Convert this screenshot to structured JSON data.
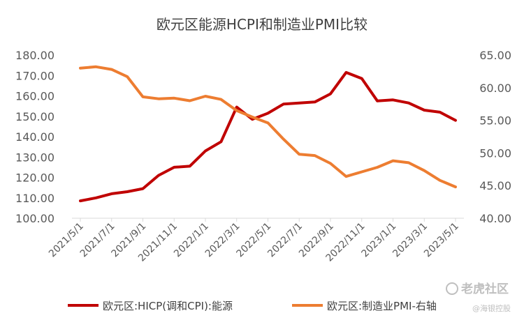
{
  "chart_data": {
    "type": "line",
    "title": "欧元区能源HCPI和制造业PMI比较",
    "x": [
      "2021/5/1",
      "2021/6/1",
      "2021/7/1",
      "2021/8/1",
      "2021/9/1",
      "2021/10/1",
      "2021/11/1",
      "2021/12/1",
      "2022/1/1",
      "2022/2/1",
      "2022/3/1",
      "2022/4/1",
      "2022/5/1",
      "2022/6/1",
      "2022/7/1",
      "2022/8/1",
      "2022/9/1",
      "2022/10/1",
      "2022/11/1",
      "2022/12/1",
      "2023/1/1",
      "2023/2/1",
      "2023/3/1",
      "2023/4/1",
      "2023/5/1"
    ],
    "x_tick_labels": [
      "2021/5/1",
      "2021/7/1",
      "2021/9/1",
      "2021/11/1",
      "2022/1/1",
      "2022/3/1",
      "2022/5/1",
      "2022/7/1",
      "2022/9/1",
      "2022/11/1",
      "2023/1/1",
      "2023/3/1",
      "2023/5/1"
    ],
    "y_left": {
      "min": 100,
      "max": 180,
      "step": 10,
      "tick_labels": [
        "100.00",
        "110.00",
        "120.00",
        "130.00",
        "140.00",
        "150.00",
        "160.00",
        "170.00",
        "180.00"
      ]
    },
    "y_right": {
      "min": 40,
      "max": 65,
      "step": 5,
      "tick_labels": [
        "40.00",
        "45.00",
        "50.00",
        "55.00",
        "60.00",
        "65.00"
      ]
    },
    "series": [
      {
        "name": "欧元区:HICP(调和CPI):能源",
        "axis": "left",
        "color": "#c00000",
        "values": [
          108.5,
          110.0,
          112.0,
          113.0,
          114.5,
          121.0,
          125.0,
          125.5,
          133.0,
          137.5,
          154.5,
          148.5,
          151.5,
          156.0,
          156.5,
          157.0,
          161.0,
          171.5,
          168.5,
          157.5,
          158.0,
          156.5,
          153.0,
          152.0,
          148.0
        ]
      },
      {
        "name": "欧元区:制造业PMI-右轴",
        "axis": "right",
        "color": "#ed7d31",
        "values": [
          63.0,
          63.2,
          62.8,
          61.7,
          58.6,
          58.3,
          58.4,
          58.0,
          58.7,
          58.2,
          56.5,
          55.5,
          54.6,
          52.1,
          49.8,
          49.6,
          48.4,
          46.4,
          47.1,
          47.8,
          48.8,
          48.5,
          47.3,
          45.8,
          44.8
        ]
      }
    ],
    "grid": false,
    "legend_position": "bottom"
  },
  "watermark": {
    "brand": "老虎社区",
    "sub": "@海银控股"
  }
}
